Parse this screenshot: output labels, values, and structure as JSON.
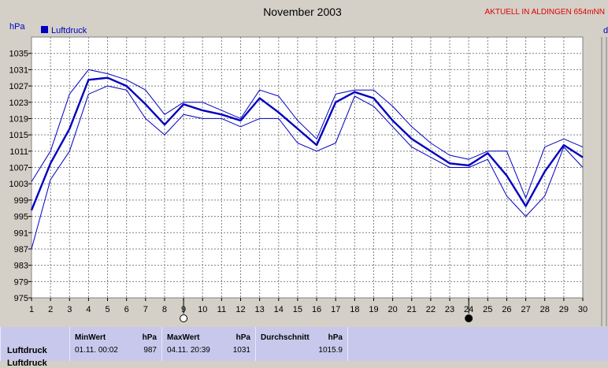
{
  "header": {
    "title": "November 2003",
    "badge": "AKTUELL IN ALDINGEN 654mNN",
    "unit": "hPa",
    "right_edge_char": "d"
  },
  "colors": {
    "background": "#d4d0c8",
    "plot_bg": "#ffffff",
    "grid": "#808080",
    "series": "#0000c0",
    "badge": "#e00000"
  },
  "chart_data": {
    "type": "line",
    "title": "November 2003",
    "ylabel": "hPa",
    "xlabel": "",
    "legend": {
      "entries": [
        "Luftdruck"
      ],
      "placement": "top-left"
    },
    "grid": true,
    "ylim": [
      975,
      1039
    ],
    "yticks": [
      975,
      979,
      983,
      987,
      991,
      995,
      999,
      1003,
      1007,
      1011,
      1015,
      1019,
      1023,
      1027,
      1031,
      1035
    ],
    "x": [
      1,
      2,
      3,
      4,
      5,
      6,
      7,
      8,
      9,
      10,
      11,
      12,
      13,
      14,
      15,
      16,
      17,
      18,
      19,
      20,
      21,
      22,
      23,
      24,
      25,
      26,
      27,
      28,
      29,
      30
    ],
    "xlim": [
      1,
      30
    ],
    "series": [
      {
        "name": "Luftdruck",
        "role": "mean",
        "values": [
          996.5,
          1008,
          1016.5,
          1028.5,
          1029,
          1027,
          1022.5,
          1017.5,
          1022.5,
          1021,
          1020,
          1018.5,
          1024,
          1020.5,
          1016.5,
          1012.5,
          1023,
          1025.5,
          1024,
          1018.5,
          1014,
          1011,
          1008,
          1007.5,
          1010.5,
          1005,
          997.5,
          1006,
          1012.5,
          1009.5
        ]
      },
      {
        "role": "max",
        "values": [
          1003.5,
          1011,
          1025,
          1031,
          1030,
          1028.5,
          1026,
          1020,
          1023,
          1023,
          1021,
          1019,
          1026,
          1024.5,
          1018.5,
          1014,
          1025,
          1026,
          1026,
          1022,
          1017,
          1013,
          1010,
          1009,
          1011,
          1011,
          999.5,
          1012,
          1014,
          1012
        ]
      },
      {
        "role": "min",
        "values": [
          987,
          1004,
          1011,
          1025,
          1027,
          1026,
          1019,
          1015,
          1020,
          1019,
          1019,
          1017,
          1019,
          1019,
          1013,
          1011,
          1013,
          1024.5,
          1022,
          1017,
          1012,
          1009.5,
          1007,
          1007,
          1009,
          1000,
          995,
          1000,
          1012,
          1007
        ]
      }
    ],
    "moon_phases": [
      {
        "day": 9,
        "phase": "full"
      },
      {
        "day": 24,
        "phase": "new"
      }
    ]
  },
  "stats": {
    "row_label": "Luftdruck",
    "row_label_2": "Luftdruck",
    "min": {
      "header": "MinWert",
      "unit": "hPa",
      "datetime": "01.11.  00:02",
      "value": "987"
    },
    "max": {
      "header": "MaxWert",
      "unit": "hPa",
      "datetime": "04.11.  20:39",
      "value": "1031"
    },
    "avg": {
      "header": "Durchschnitt",
      "unit": "hPa",
      "value": "1015.9"
    }
  }
}
